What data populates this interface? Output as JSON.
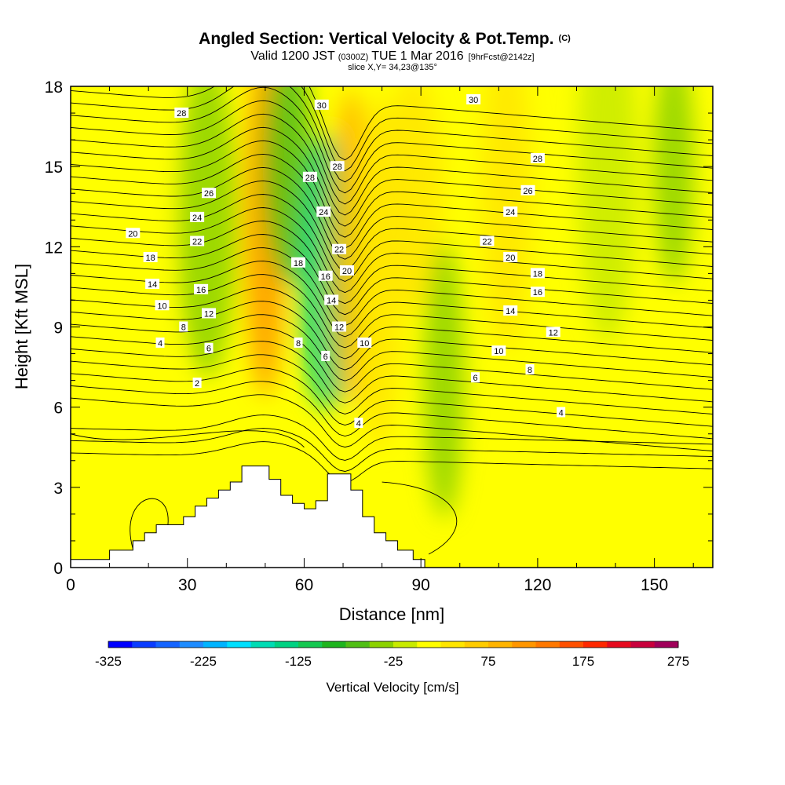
{
  "title": {
    "main": "Angled Section: Vertical Velocity & Pot.Temp.",
    "main_unit": "(C)",
    "valid_prefix": "Valid 1200 JST",
    "valid_zulu": "(0300Z)",
    "valid_date": "TUE 1 Mar 2016",
    "forecast": "[9hrFcst@2142z]",
    "slice": "slice X,Y= 34,23@135°"
  },
  "chart_data": {
    "type": "heatmap",
    "xlabel": "Distance [nm]",
    "ylabel": "Height [Kft MSL]",
    "xlim": [
      0,
      165
    ],
    "ylim": [
      0,
      18
    ],
    "x_ticks": [
      0,
      30,
      60,
      90,
      120,
      150
    ],
    "y_ticks": [
      0,
      3,
      6,
      9,
      12,
      15,
      18
    ],
    "terrain": {
      "x": [
        0,
        10,
        10,
        16,
        16,
        19,
        19,
        22,
        22,
        29,
        29,
        32,
        32,
        35,
        35,
        38,
        38,
        41,
        41,
        44,
        44,
        51,
        51,
        54,
        54,
        57,
        57,
        60,
        60,
        63,
        63,
        66,
        66,
        72,
        72,
        75,
        75,
        78,
        78,
        81,
        81,
        84,
        84,
        88,
        88,
        91,
        91,
        165
      ],
      "y": [
        0.3,
        0.3,
        0.65,
        0.65,
        1.0,
        1.0,
        1.3,
        1.3,
        1.6,
        1.6,
        1.9,
        1.9,
        2.3,
        2.3,
        2.6,
        2.6,
        2.9,
        2.9,
        3.2,
        3.2,
        3.8,
        3.8,
        3.3,
        3.3,
        2.7,
        2.7,
        2.4,
        2.4,
        2.2,
        2.2,
        2.5,
        2.5,
        3.5,
        3.5,
        2.9,
        2.9,
        1.9,
        1.9,
        1.3,
        1.3,
        1.0,
        1.0,
        0.65,
        0.65,
        0.3,
        0.3,
        0.0,
        0.0
      ]
    },
    "colorbar": {
      "label": "Vertical Velocity [cm/s]",
      "ticks": [
        -325,
        -225,
        -125,
        -25,
        75,
        175,
        275
      ],
      "levels": [
        -325,
        -300,
        -275,
        -250,
        -225,
        -200,
        -175,
        -150,
        -125,
        -100,
        -75,
        -50,
        -25,
        0,
        25,
        50,
        75,
        100,
        125,
        150,
        175,
        200,
        225,
        250,
        275
      ],
      "colors": [
        "#0000ff",
        "#0a3cff",
        "#1464ff",
        "#1e8cff",
        "#00b4ff",
        "#00e0ff",
        "#00dcb4",
        "#00d282",
        "#14c850",
        "#1eb41e",
        "#50be14",
        "#8cd200",
        "#c8eb00",
        "#ffff00",
        "#ffe600",
        "#ffcc00",
        "#ffb400",
        "#ff9600",
        "#ff7800",
        "#ff5000",
        "#ff2800",
        "#e60a1e",
        "#c8003c",
        "#a0005a",
        "#780078"
      ]
    },
    "vv_features": [
      {
        "x": 8,
        "y": 7,
        "value": 20
      },
      {
        "x": 20,
        "y": 14,
        "value": 15
      },
      {
        "x": 35,
        "y": 13,
        "value": -45
      },
      {
        "x": 50,
        "y": 13,
        "value": 110
      },
      {
        "x": 56,
        "y": 15,
        "value": -70
      },
      {
        "x": 66,
        "y": 11,
        "value": -140
      },
      {
        "x": 72,
        "y": 12,
        "value": 95
      },
      {
        "x": 79,
        "y": 11,
        "value": 40
      },
      {
        "x": 88,
        "y": 14,
        "value": 30
      },
      {
        "x": 96,
        "y": 7,
        "value": -40
      },
      {
        "x": 112,
        "y": 14,
        "value": 30
      },
      {
        "x": 138,
        "y": 15,
        "value": -20
      },
      {
        "x": 155,
        "y": 15,
        "value": -45
      },
      {
        "x": 150,
        "y": 4,
        "value": 20
      },
      {
        "x": 22,
        "y": 4,
        "value": 18
      }
    ],
    "contour_labels": [
      {
        "x": 28.5,
        "y": 17.0,
        "text": "28"
      },
      {
        "x": 64.5,
        "y": 17.3,
        "text": "30"
      },
      {
        "x": 103.5,
        "y": 17.5,
        "text": "30"
      },
      {
        "x": 35.5,
        "y": 14.0,
        "text": "26"
      },
      {
        "x": 61.5,
        "y": 14.6,
        "text": "28"
      },
      {
        "x": 68.5,
        "y": 15.0,
        "text": "28"
      },
      {
        "x": 120.0,
        "y": 15.3,
        "text": "28"
      },
      {
        "x": 117.5,
        "y": 14.1,
        "text": "26"
      },
      {
        "x": 32.5,
        "y": 13.1,
        "text": "24"
      },
      {
        "x": 65.0,
        "y": 13.3,
        "text": "24"
      },
      {
        "x": 113.0,
        "y": 13.3,
        "text": "24"
      },
      {
        "x": 16.0,
        "y": 12.5,
        "text": "20"
      },
      {
        "x": 32.5,
        "y": 12.2,
        "text": "22"
      },
      {
        "x": 69.0,
        "y": 11.9,
        "text": "22"
      },
      {
        "x": 107.0,
        "y": 12.2,
        "text": "22"
      },
      {
        "x": 20.5,
        "y": 11.6,
        "text": "18"
      },
      {
        "x": 58.5,
        "y": 11.4,
        "text": "18"
      },
      {
        "x": 71.0,
        "y": 11.1,
        "text": "20"
      },
      {
        "x": 113.0,
        "y": 11.6,
        "text": "20"
      },
      {
        "x": 65.5,
        "y": 10.9,
        "text": "16"
      },
      {
        "x": 120.0,
        "y": 11.0,
        "text": "18"
      },
      {
        "x": 21.0,
        "y": 10.6,
        "text": "14"
      },
      {
        "x": 33.5,
        "y": 10.4,
        "text": "16"
      },
      {
        "x": 120.0,
        "y": 10.3,
        "text": "16"
      },
      {
        "x": 67.0,
        "y": 10.0,
        "text": "14"
      },
      {
        "x": 23.5,
        "y": 9.8,
        "text": "10"
      },
      {
        "x": 35.5,
        "y": 9.5,
        "text": "12"
      },
      {
        "x": 113.0,
        "y": 9.6,
        "text": "14"
      },
      {
        "x": 29.0,
        "y": 9.0,
        "text": "8"
      },
      {
        "x": 69.0,
        "y": 9.0,
        "text": "12"
      },
      {
        "x": 124.0,
        "y": 8.8,
        "text": "12"
      },
      {
        "x": 23.0,
        "y": 8.4,
        "text": "4"
      },
      {
        "x": 35.5,
        "y": 8.2,
        "text": "6"
      },
      {
        "x": 58.5,
        "y": 8.4,
        "text": "8"
      },
      {
        "x": 75.5,
        "y": 8.4,
        "text": "10"
      },
      {
        "x": 65.5,
        "y": 7.9,
        "text": "6"
      },
      {
        "x": 110.0,
        "y": 8.1,
        "text": "10"
      },
      {
        "x": 118.0,
        "y": 7.4,
        "text": "8"
      },
      {
        "x": 104.0,
        "y": 7.1,
        "text": "6"
      },
      {
        "x": 32.5,
        "y": 6.9,
        "text": "2"
      },
      {
        "x": 74.0,
        "y": 5.4,
        "text": "4"
      },
      {
        "x": 126.0,
        "y": 5.8,
        "text": "4"
      }
    ]
  }
}
